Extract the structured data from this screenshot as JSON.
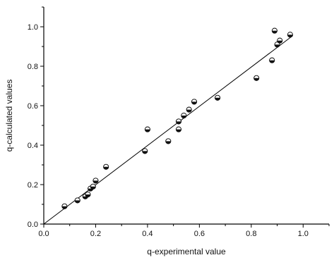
{
  "chart_data": {
    "type": "scatter",
    "title": "",
    "xlabel": "q-experimental value",
    "ylabel": "q-calculated values",
    "xlim": [
      0.0,
      1.1
    ],
    "ylim": [
      0.0,
      1.1
    ],
    "xticks": [
      "0.0",
      "0.2",
      "0.4",
      "0.6",
      "0.8",
      "1.0"
    ],
    "yticks": [
      "0.0",
      "0.2",
      "0.4",
      "0.6",
      "0.8",
      "1.0"
    ],
    "grid": false,
    "legend": "none",
    "marker": "half-filled circle",
    "series": [
      {
        "points": [
          {
            "x": 0.08,
            "y": 0.09
          },
          {
            "x": 0.13,
            "y": 0.12
          },
          {
            "x": 0.16,
            "y": 0.14
          },
          {
            "x": 0.17,
            "y": 0.15
          },
          {
            "x": 0.18,
            "y": 0.18
          },
          {
            "x": 0.19,
            "y": 0.19
          },
          {
            "x": 0.2,
            "y": 0.22
          },
          {
            "x": 0.24,
            "y": 0.29
          },
          {
            "x": 0.39,
            "y": 0.37
          },
          {
            "x": 0.4,
            "y": 0.48
          },
          {
            "x": 0.48,
            "y": 0.42
          },
          {
            "x": 0.52,
            "y": 0.48
          },
          {
            "x": 0.52,
            "y": 0.52
          },
          {
            "x": 0.54,
            "y": 0.55
          },
          {
            "x": 0.56,
            "y": 0.58
          },
          {
            "x": 0.58,
            "y": 0.62
          },
          {
            "x": 0.67,
            "y": 0.64
          },
          {
            "x": 0.82,
            "y": 0.74
          },
          {
            "x": 0.88,
            "y": 0.83
          },
          {
            "x": 0.89,
            "y": 0.98
          },
          {
            "x": 0.9,
            "y": 0.91
          },
          {
            "x": 0.91,
            "y": 0.93
          },
          {
            "x": 0.95,
            "y": 0.96
          }
        ]
      }
    ],
    "fit_line": {
      "x": [
        0.0,
        0.96
      ],
      "y": [
        0.0,
        0.955
      ]
    }
  }
}
